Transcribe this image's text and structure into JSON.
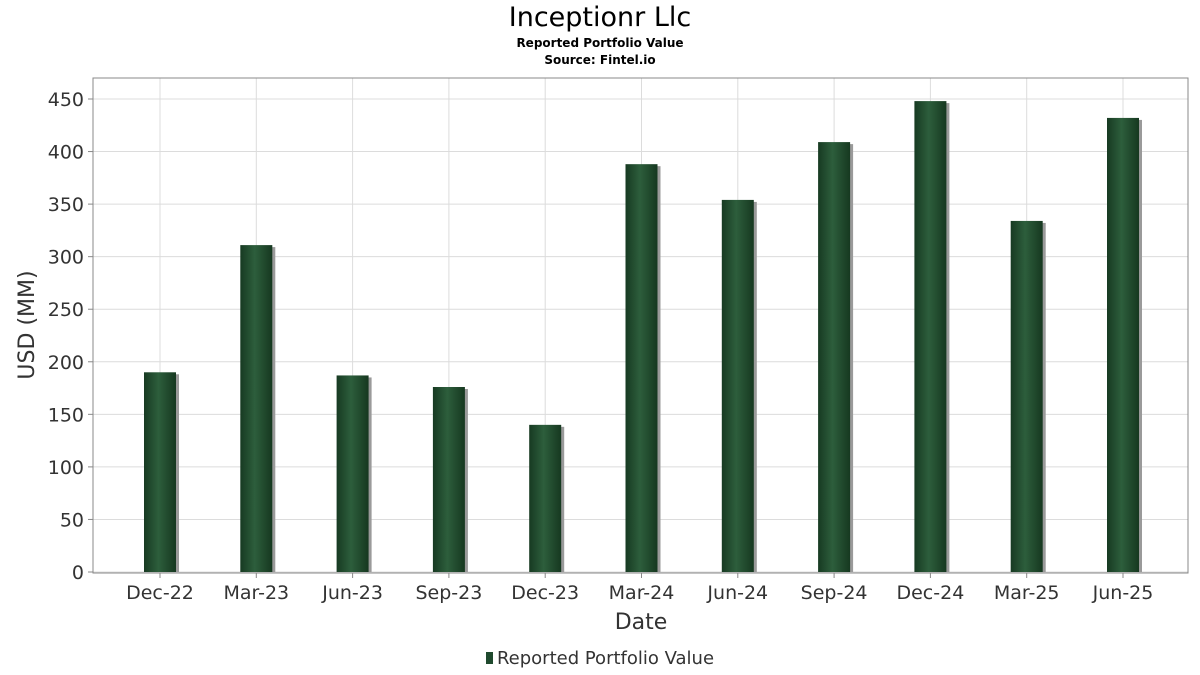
{
  "header": {
    "title": "Inceptionr Llc",
    "subtitle": "Reported Portfolio Value",
    "source": "Source: Fintel.io"
  },
  "colors": {
    "bar": "#1f4a2e",
    "bar_highlight": "#2d5e3c",
    "bar_shadow": "#9a9a9a",
    "grid": "#dcdcdc",
    "axis": "#888888",
    "tick_text": "#333333"
  },
  "chart_data": {
    "type": "bar",
    "title": "Inceptionr Llc",
    "subtitle": "Reported Portfolio Value",
    "xlabel": "Date",
    "ylabel": "USD (MM)",
    "ylim": [
      0,
      470
    ],
    "yticks": [
      0,
      50,
      100,
      150,
      200,
      250,
      300,
      350,
      400,
      450
    ],
    "grid": true,
    "legend_position": "bottom-center",
    "categories": [
      "Dec-22",
      "Mar-23",
      "Jun-23",
      "Sep-23",
      "Dec-23",
      "Mar-24",
      "Jun-24",
      "Sep-24",
      "Dec-24",
      "Mar-25",
      "Jun-25"
    ],
    "series": [
      {
        "name": "Reported Portfolio Value",
        "values": [
          190,
          311,
          187,
          176,
          140,
          388,
          354,
          409,
          448,
          334,
          432
        ]
      }
    ]
  }
}
